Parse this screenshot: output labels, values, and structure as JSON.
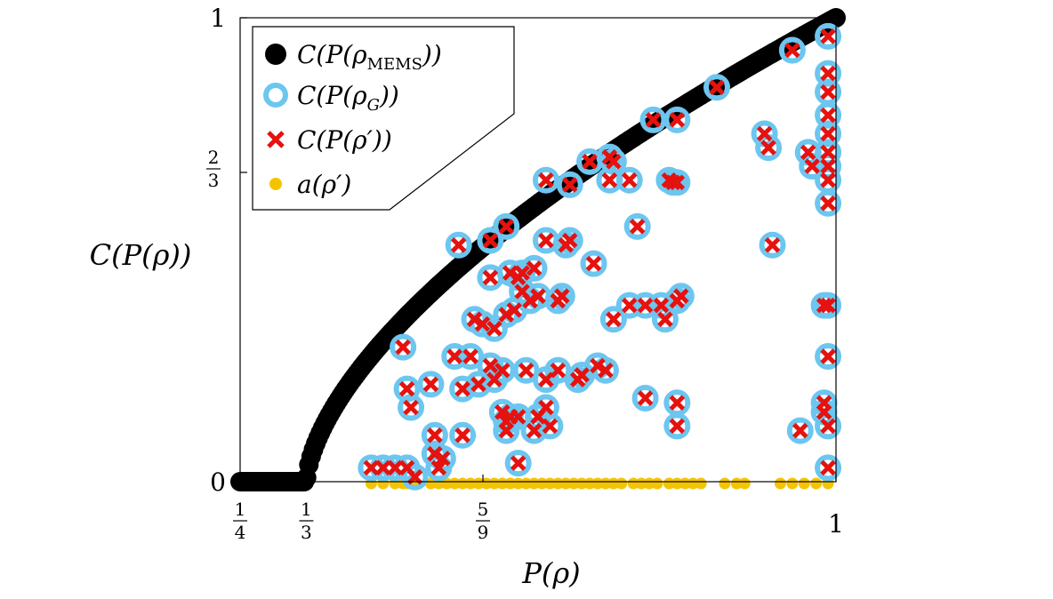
{
  "chart_data": {
    "type": "scatter",
    "title": "",
    "xlabel": "P(ρ)",
    "ylabel": "C(P(ρ))",
    "xlim": [
      0.25,
      1.0
    ],
    "ylim": [
      0,
      1
    ],
    "x_ticks": [
      {
        "value": 0.25,
        "num": "1",
        "den": "4"
      },
      {
        "value": 0.3333,
        "num": "1",
        "den": "3"
      },
      {
        "value": 0.5556,
        "num": "5",
        "den": "9"
      },
      {
        "value": 1.0,
        "label": "1"
      }
    ],
    "y_ticks": [
      {
        "value": 0,
        "label": "0"
      },
      {
        "value": 0.6667,
        "num": "2",
        "den": "3"
      },
      {
        "value": 1,
        "label": "1"
      }
    ],
    "legend": {
      "position": "top-left",
      "entries": [
        {
          "name": "C(P(ρMEMS))",
          "display": "C(P(ρ",
          "sub": "MEMS",
          "tail": "))",
          "marker": "filled-circle",
          "color": "#000000"
        },
        {
          "name": "C(P(ρG))",
          "display": "C(P(ρ",
          "sub": "G",
          "tail": "))",
          "marker": "open-circle",
          "color": "#6cc6f0"
        },
        {
          "name": "C(P(ρ′))",
          "display": "C(P(ρ′))",
          "marker": "cross",
          "color": "#e5120f"
        },
        {
          "name": "a(ρ′)",
          "display": "a(ρ′)",
          "marker": "small-circle",
          "color": "#f5c400"
        }
      ]
    },
    "series": [
      {
        "name": "C(P(ρMEMS))",
        "kind": "mems_boundary",
        "x_range": [
          0.25,
          1.0
        ],
        "note": "C=0 for P≤1/3; C=√(2P−2/3)·... boundary curve to (1,1)"
      },
      {
        "name": "C(P(ρG)) & C(P(ρ′))",
        "points": [
          [
            0.99,
            0.96
          ],
          [
            0.945,
            0.93
          ],
          [
            0.99,
            0.88
          ],
          [
            0.99,
            0.84
          ],
          [
            0.99,
            0.79
          ],
          [
            0.99,
            0.75
          ],
          [
            0.99,
            0.71
          ],
          [
            0.99,
            0.68
          ],
          [
            0.99,
            0.65
          ],
          [
            0.99,
            0.6
          ],
          [
            0.85,
            0.85
          ],
          [
            0.8,
            0.78
          ],
          [
            0.77,
            0.78
          ],
          [
            0.91,
            0.75
          ],
          [
            0.915,
            0.72
          ],
          [
            0.965,
            0.71
          ],
          [
            0.97,
            0.68
          ],
          [
            0.72,
            0.69
          ],
          [
            0.715,
            0.7
          ],
          [
            0.69,
            0.69
          ],
          [
            0.715,
            0.65
          ],
          [
            0.665,
            0.64
          ],
          [
            0.635,
            0.65
          ],
          [
            0.74,
            0.65
          ],
          [
            0.79,
            0.65
          ],
          [
            0.795,
            0.645
          ],
          [
            0.8,
            0.645
          ],
          [
            0.75,
            0.55
          ],
          [
            0.66,
            0.51
          ],
          [
            0.665,
            0.52
          ],
          [
            0.635,
            0.52
          ],
          [
            0.585,
            0.55
          ],
          [
            0.565,
            0.52
          ],
          [
            0.525,
            0.51
          ],
          [
            0.92,
            0.51
          ],
          [
            0.695,
            0.47
          ],
          [
            0.62,
            0.46
          ],
          [
            0.59,
            0.45
          ],
          [
            0.6,
            0.44
          ],
          [
            0.605,
            0.45
          ],
          [
            0.625,
            0.4
          ],
          [
            0.655,
            0.4
          ],
          [
            0.65,
            0.39
          ],
          [
            0.615,
            0.39
          ],
          [
            0.605,
            0.41
          ],
          [
            0.565,
            0.44
          ],
          [
            0.72,
            0.35
          ],
          [
            0.74,
            0.38
          ],
          [
            0.78,
            0.38
          ],
          [
            0.76,
            0.38
          ],
          [
            0.8,
            0.39
          ],
          [
            0.785,
            0.35
          ],
          [
            0.805,
            0.4
          ],
          [
            0.545,
            0.35
          ],
          [
            0.555,
            0.34
          ],
          [
            0.57,
            0.33
          ],
          [
            0.585,
            0.36
          ],
          [
            0.595,
            0.37
          ],
          [
            0.455,
            0.29
          ],
          [
            0.52,
            0.27
          ],
          [
            0.54,
            0.27
          ],
          [
            0.565,
            0.25
          ],
          [
            0.58,
            0.24
          ],
          [
            0.61,
            0.24
          ],
          [
            0.65,
            0.24
          ],
          [
            0.635,
            0.22
          ],
          [
            0.675,
            0.22
          ],
          [
            0.68,
            0.23
          ],
          [
            0.71,
            0.24
          ],
          [
            0.7,
            0.25
          ],
          [
            0.53,
            0.2
          ],
          [
            0.55,
            0.21
          ],
          [
            0.57,
            0.22
          ],
          [
            0.49,
            0.21
          ],
          [
            0.46,
            0.2
          ],
          [
            0.465,
            0.16
          ],
          [
            0.58,
            0.15
          ],
          [
            0.59,
            0.14
          ],
          [
            0.6,
            0.14
          ],
          [
            0.635,
            0.16
          ],
          [
            0.625,
            0.14
          ],
          [
            0.62,
            0.11
          ],
          [
            0.585,
            0.11
          ],
          [
            0.585,
            0.13
          ],
          [
            0.64,
            0.12
          ],
          [
            0.53,
            0.1
          ],
          [
            0.495,
            0.1
          ],
          [
            0.495,
            0.06
          ],
          [
            0.505,
            0.05
          ],
          [
            0.415,
            0.03
          ],
          [
            0.43,
            0.03
          ],
          [
            0.445,
            0.03
          ],
          [
            0.46,
            0.03
          ],
          [
            0.47,
            0.01
          ],
          [
            0.5,
            0.03
          ],
          [
            0.6,
            0.04
          ],
          [
            0.76,
            0.18
          ],
          [
            0.8,
            0.17
          ],
          [
            0.8,
            0.12
          ],
          [
            0.985,
            0.17
          ],
          [
            0.985,
            0.15
          ],
          [
            0.955,
            0.11
          ],
          [
            0.99,
            0.27
          ],
          [
            0.99,
            0.38
          ],
          [
            0.985,
            0.38
          ],
          [
            0.99,
            0.03
          ],
          [
            0.99,
            0.12
          ]
        ]
      },
      {
        "name": "a(ρ′)",
        "y": 0,
        "x": [
          0.415,
          0.43,
          0.445,
          0.455,
          0.46,
          0.465,
          0.47,
          0.49,
          0.5,
          0.51,
          0.52,
          0.53,
          0.54,
          0.55,
          0.56,
          0.57,
          0.58,
          0.59,
          0.6,
          0.61,
          0.62,
          0.63,
          0.64,
          0.65,
          0.66,
          0.67,
          0.68,
          0.69,
          0.7,
          0.71,
          0.72,
          0.73,
          0.745,
          0.755,
          0.765,
          0.775,
          0.79,
          0.8,
          0.81,
          0.82,
          0.83,
          0.86,
          0.875,
          0.885,
          0.93,
          0.945,
          0.96,
          0.975,
          0.99
        ]
      }
    ]
  }
}
